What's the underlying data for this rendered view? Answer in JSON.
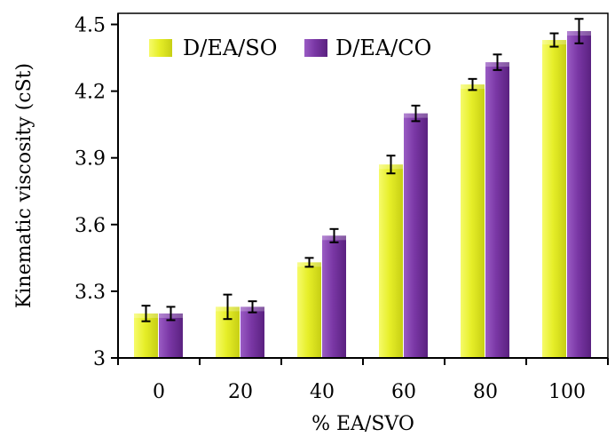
{
  "chart_data": {
    "type": "bar",
    "categories": [
      "0",
      "20",
      "40",
      "60",
      "80",
      "100"
    ],
    "series": [
      {
        "name": "D/EA/SO",
        "color": "#e6ee28",
        "values": [
          3.2,
          3.23,
          3.43,
          3.87,
          4.23,
          4.43
        ],
        "errors": [
          0.035,
          0.055,
          0.02,
          0.04,
          0.025,
          0.03
        ]
      },
      {
        "name": "D/EA/CO",
        "color": "#7a37a5",
        "values": [
          3.2,
          3.23,
          3.55,
          4.1,
          4.33,
          4.47
        ],
        "errors": [
          0.03,
          0.025,
          0.03,
          0.035,
          0.035,
          0.055
        ]
      }
    ],
    "xlabel": "% EA/SVO",
    "ylabel": "Kinematic viscosity (cSt)",
    "ylim": [
      3,
      4.55
    ],
    "yticks": [
      "3",
      "3.3",
      "3.6",
      "3.9",
      "4.2",
      "4.5"
    ],
    "ytick_values": [
      3,
      3.3,
      3.6,
      3.9,
      4.2,
      4.5
    ],
    "legend_position": "top-left",
    "grid": false
  }
}
